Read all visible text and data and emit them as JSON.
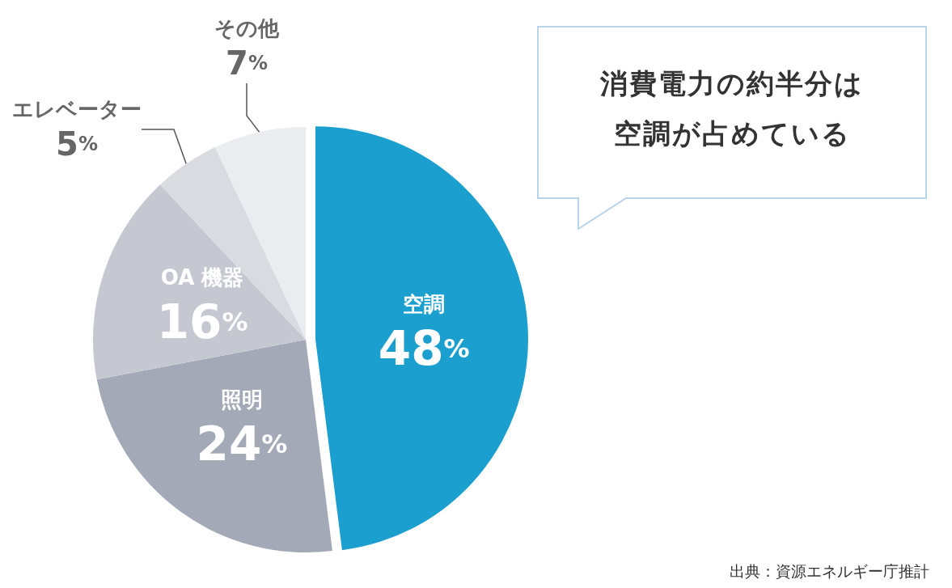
{
  "chart_data": {
    "type": "pie",
    "categories": [
      "空調",
      "照明",
      "OA 機器",
      "エレベーター",
      "その他"
    ],
    "values": [
      48,
      24,
      16,
      5,
      7
    ],
    "value_labels": [
      "48%",
      "24%",
      "16%",
      "5%",
      "7%"
    ],
    "colors": [
      "#1b9fce",
      "#a3a9b6",
      "#c5c8d1",
      "#d9dbe1",
      "#ebecef"
    ],
    "legend": false,
    "annotations": [
      "消費電力の約半分は空調が占めている",
      "出典：資源エネルギー庁推計"
    ]
  }
}
